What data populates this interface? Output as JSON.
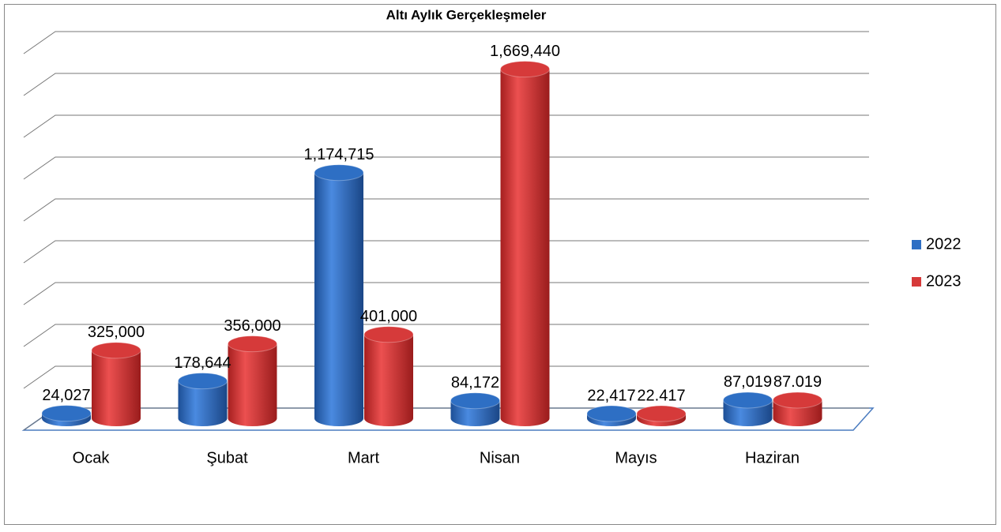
{
  "chart_data": {
    "type": "bar3d",
    "title": "Altı Aylık Gerçekleşmeler",
    "categories": [
      "Ocak",
      "Şubat",
      "Mart",
      "Nisan",
      "Mayıs",
      "Haziran"
    ],
    "series": [
      {
        "name": "2022",
        "color": "#2e6fc4",
        "values": [
          24027,
          178644,
          1174715,
          84172,
          22417,
          87019
        ],
        "value_labels": [
          "24,027",
          "178,644",
          "1,174,715",
          "84,172",
          "22,417",
          "87,019"
        ]
      },
      {
        "name": "2023",
        "color": "#d63a3a",
        "values": [
          325000,
          356000,
          401000,
          1669440,
          22417,
          87019
        ],
        "value_labels": [
          "325,000",
          "356,000",
          "401,000",
          "1,669,440",
          "22.417",
          "87.019"
        ]
      }
    ],
    "ylim": [
      0,
      1800000
    ],
    "yticks": [
      0,
      200000,
      400000,
      600000,
      800000,
      1000000,
      1200000,
      1400000,
      1600000,
      1800000
    ],
    "grid": true,
    "legend": "right"
  }
}
